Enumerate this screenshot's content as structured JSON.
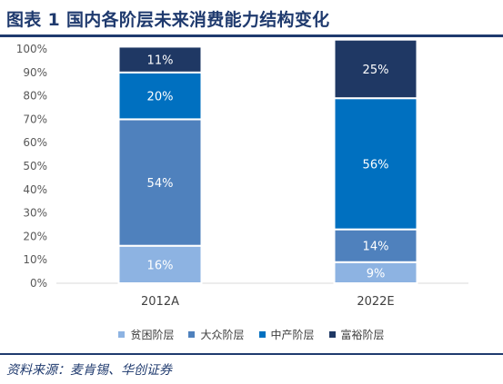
{
  "header": {
    "title": "图表 1 国内各阶层未来消费能力结构变化"
  },
  "footer": {
    "source": "资料来源：麦肯锡、华创证券"
  },
  "chart_data": {
    "type": "bar",
    "stacked": true,
    "categories": [
      "2012A",
      "2022E"
    ],
    "series": [
      {
        "name": "贫困阶层",
        "values": [
          16,
          9
        ],
        "labels": [
          "16%",
          "9%"
        ],
        "color": "#8db3e2"
      },
      {
        "name": "大众阶层",
        "values": [
          54,
          14
        ],
        "labels": [
          "54%",
          "14%"
        ],
        "color": "#4f81bd"
      },
      {
        "name": "中产阶层",
        "values": [
          20,
          56
        ],
        "labels": [
          "20%",
          "56%"
        ],
        "color": "#0070c0"
      },
      {
        "name": "富裕阶层",
        "values": [
          11,
          25
        ],
        "labels": [
          "11%",
          "25%"
        ],
        "color": "#1f3864"
      }
    ],
    "y_ticks": [
      "0%",
      "10%",
      "20%",
      "30%",
      "40%",
      "50%",
      "60%",
      "70%",
      "80%",
      "90%",
      "100%"
    ],
    "ylim": [
      0,
      100
    ],
    "grid": false,
    "legend_position": "bottom"
  }
}
